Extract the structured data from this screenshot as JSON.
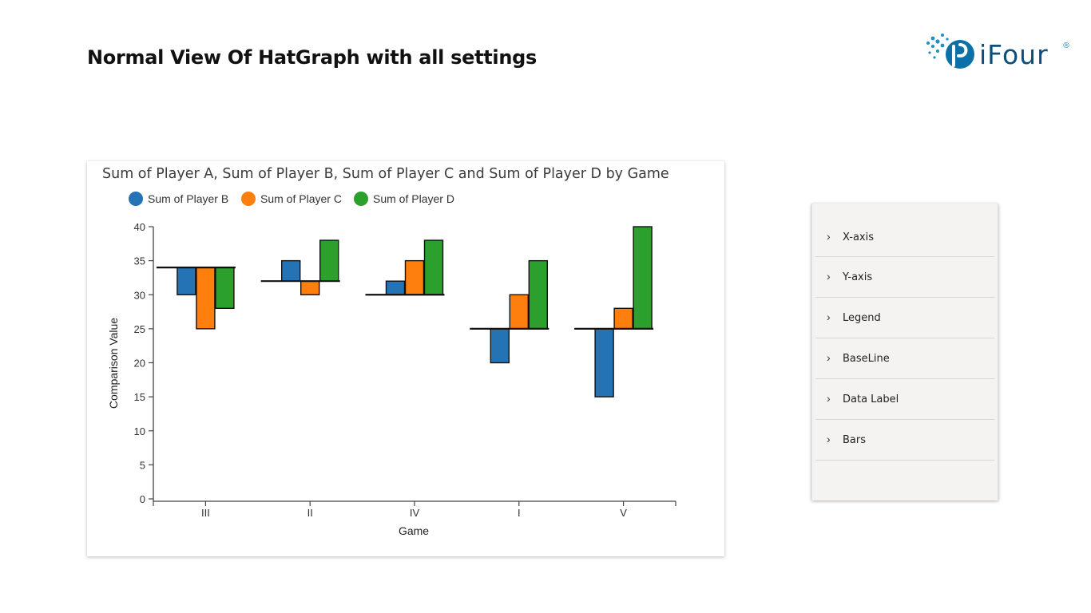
{
  "slide": {
    "title": "Normal View Of HatGraph with all settings"
  },
  "logo": {
    "text": "iFour",
    "registered": "®",
    "accent_color": "#1f8fc6",
    "text_color": "#0b4f7a"
  },
  "chart_data": {
    "type": "bar",
    "variant": "hat-graph",
    "title": "Sum of Player A, Sum of Player B, Sum of Player C and Sum of Player D by Game",
    "xlabel": "Game",
    "ylabel": "Comparison Value",
    "ylim": [
      0,
      40
    ],
    "yticks": [
      0,
      5,
      10,
      15,
      20,
      25,
      30,
      35,
      40
    ],
    "categories": [
      "III",
      "II",
      "IV",
      "I",
      "V"
    ],
    "baseline": {
      "name": "Sum of Player A",
      "values": [
        34,
        32,
        30,
        25,
        25
      ]
    },
    "series": [
      {
        "name": "Sum of Player B",
        "color": "#2474b5",
        "values": [
          30,
          35,
          32,
          20,
          15
        ]
      },
      {
        "name": "Sum of Player C",
        "color": "#ff7f0e",
        "values": [
          25,
          30,
          35,
          30,
          28
        ]
      },
      {
        "name": "Sum of Player D",
        "color": "#2ca02c",
        "values": [
          28,
          38,
          38,
          35,
          40
        ]
      }
    ],
    "legend_position": "top-left",
    "grid": false
  },
  "settings_panel": {
    "items": [
      {
        "label": "X-axis"
      },
      {
        "label": "Y-axis"
      },
      {
        "label": "Legend"
      },
      {
        "label": "BaseLine"
      },
      {
        "label": "Data Label"
      },
      {
        "label": "Bars"
      }
    ]
  }
}
